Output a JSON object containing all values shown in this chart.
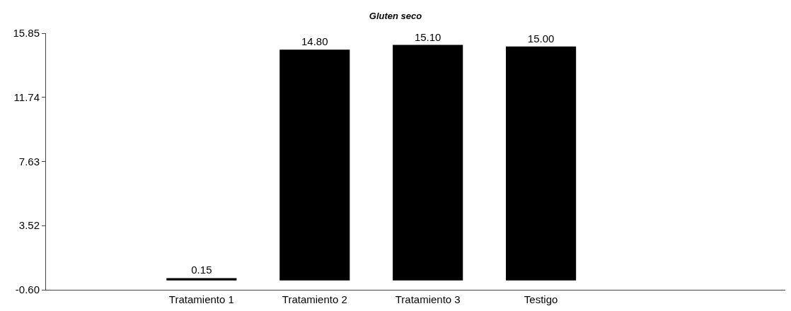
{
  "chart_data": {
    "type": "bar",
    "title": "Gluten seco",
    "categories": [
      "Tratamiento 1",
      "Tratamiento 2",
      "Tratamiento 3",
      "Testigo"
    ],
    "values": [
      0.15,
      14.8,
      15.1,
      15.0
    ],
    "value_labels": [
      "0.15",
      "14.80",
      "15.10",
      "15.00"
    ],
    "color": "#000000",
    "ylim": [
      -0.6,
      15.85
    ],
    "yticks": [
      {
        "value": -0.6,
        "label": "-0.60"
      },
      3.52,
      7.63,
      11.74,
      15.85
    ],
    "legend": false
  }
}
